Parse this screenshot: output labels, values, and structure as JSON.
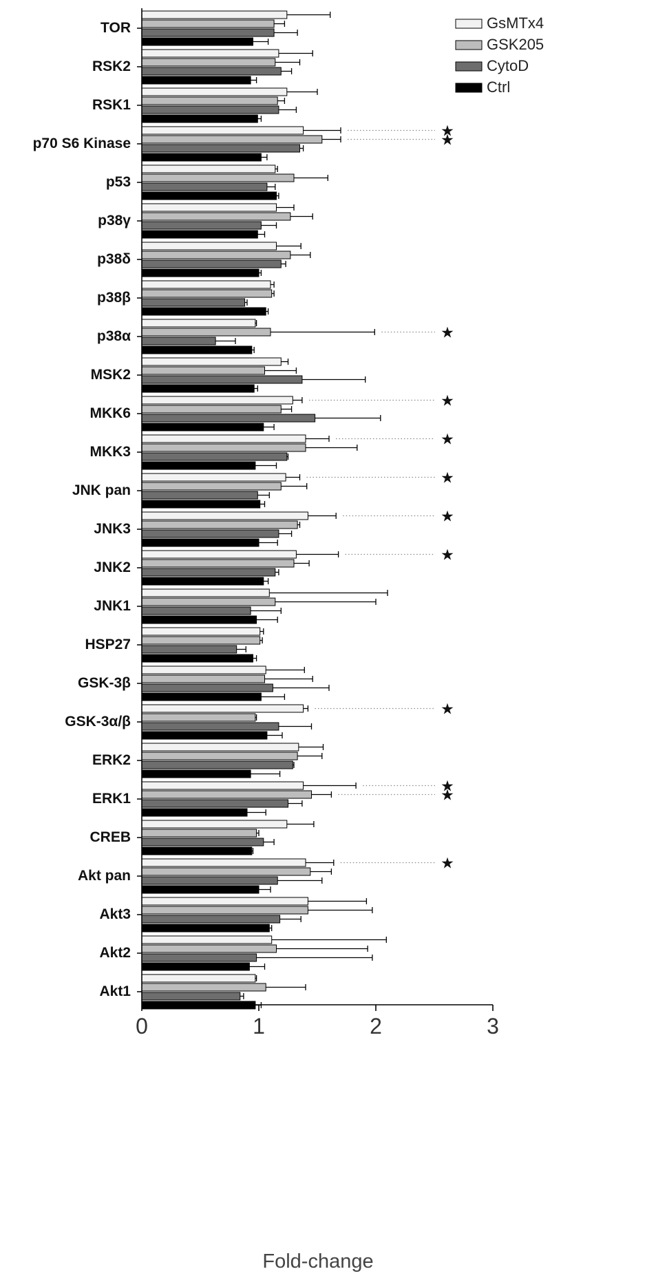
{
  "chart_data": {
    "type": "bar",
    "orientation": "horizontal",
    "xlabel": "Fold-change",
    "xlim": [
      0,
      3
    ],
    "xticks": [
      "0",
      "1",
      "2",
      "3"
    ],
    "legend_position": "top-right",
    "significance_marker": "★",
    "categories": [
      "TOR",
      "RSK2",
      "RSK1",
      "p70 S6 Kinase",
      "p53",
      "p38γ",
      "p38δ",
      "p38β",
      "p38α",
      "MSK2",
      "MKK6",
      "MKK3",
      "JNK pan",
      "JNK3",
      "JNK2",
      "JNK1",
      "HSP27",
      "GSK-3β",
      "GSK-3α/β",
      "ERK2",
      "ERK1",
      "CREB",
      "Akt pan",
      "Akt3",
      "Akt2",
      "Akt1"
    ],
    "series": [
      {
        "name": "GsMTx4",
        "color": "#f2f2f2",
        "values": [
          1.24,
          1.17,
          1.24,
          1.38,
          1.14,
          1.15,
          1.15,
          1.1,
          0.97,
          1.19,
          1.29,
          1.4,
          1.23,
          1.42,
          1.32,
          1.09,
          1.01,
          1.06,
          1.38,
          1.34,
          1.38,
          1.24,
          1.4,
          1.42,
          1.11,
          0.97
        ],
        "errors": [
          0.37,
          0.29,
          0.26,
          0.32,
          0.02,
          0.15,
          0.21,
          0.03,
          0.01,
          0.06,
          0.08,
          0.2,
          0.12,
          0.24,
          0.36,
          1.01,
          0.03,
          0.33,
          0.04,
          0.21,
          0.45,
          0.23,
          0.24,
          0.5,
          0.98,
          0.01
        ],
        "significant": [
          false,
          false,
          false,
          true,
          false,
          false,
          false,
          false,
          false,
          false,
          true,
          true,
          true,
          true,
          true,
          false,
          false,
          false,
          true,
          false,
          true,
          false,
          true,
          false,
          false,
          false
        ]
      },
      {
        "name": "GSK205",
        "color": "#bdbdbd",
        "values": [
          1.13,
          1.14,
          1.16,
          1.54,
          1.3,
          1.27,
          1.27,
          1.11,
          1.1,
          1.05,
          1.19,
          1.4,
          1.19,
          1.33,
          1.3,
          1.14,
          1.01,
          1.05,
          0.97,
          1.33,
          1.45,
          0.98,
          1.44,
          1.42,
          1.15,
          1.06
        ],
        "errors": [
          0.09,
          0.21,
          0.06,
          0.16,
          0.29,
          0.19,
          0.17,
          0.02,
          0.89,
          0.27,
          0.09,
          0.44,
          0.22,
          0.02,
          0.13,
          0.86,
          0.02,
          0.41,
          0.01,
          0.21,
          0.17,
          0.02,
          0.18,
          0.55,
          0.78,
          0.34
        ],
        "significant": [
          false,
          false,
          false,
          true,
          false,
          false,
          false,
          false,
          true,
          false,
          false,
          false,
          false,
          false,
          false,
          false,
          false,
          false,
          false,
          false,
          true,
          false,
          false,
          false,
          false,
          false
        ]
      },
      {
        "name": "CytoD",
        "color": "#6e6e6e",
        "values": [
          1.13,
          1.19,
          1.17,
          1.35,
          1.07,
          1.02,
          1.19,
          0.88,
          0.63,
          1.37,
          1.48,
          1.24,
          0.99,
          1.17,
          1.14,
          0.93,
          0.81,
          1.12,
          1.17,
          1.29,
          1.25,
          1.04,
          1.16,
          1.18,
          0.98,
          0.84
        ],
        "errors": [
          0.2,
          0.09,
          0.15,
          0.03,
          0.07,
          0.13,
          0.04,
          0.02,
          0.17,
          0.54,
          0.56,
          0.01,
          0.1,
          0.11,
          0.03,
          0.26,
          0.08,
          0.48,
          0.28,
          0.01,
          0.12,
          0.09,
          0.38,
          0.18,
          0.99,
          0.03
        ],
        "significant": [
          false,
          false,
          false,
          false,
          false,
          false,
          false,
          false,
          false,
          false,
          false,
          false,
          false,
          false,
          false,
          false,
          false,
          false,
          false,
          false,
          false,
          false,
          false,
          false,
          false,
          false
        ]
      },
      {
        "name": "Ctrl",
        "color": "#000000",
        "values": [
          0.95,
          0.93,
          0.99,
          1.02,
          1.15,
          0.99,
          1.0,
          1.06,
          0.94,
          0.96,
          1.04,
          0.97,
          1.01,
          1.0,
          1.04,
          0.98,
          0.95,
          1.02,
          1.07,
          0.93,
          0.9,
          0.94,
          1.0,
          1.09,
          0.92,
          0.97
        ],
        "errors": [
          0.13,
          0.05,
          0.03,
          0.05,
          0.02,
          0.06,
          0.02,
          0.02,
          0.02,
          0.03,
          0.09,
          0.18,
          0.04,
          0.16,
          0.04,
          0.18,
          0.03,
          0.2,
          0.13,
          0.25,
          0.16,
          0.01,
          0.1,
          0.02,
          0.13,
          0.05
        ],
        "significant": [
          false,
          false,
          false,
          false,
          false,
          false,
          false,
          false,
          false,
          false,
          false,
          false,
          false,
          false,
          false,
          false,
          false,
          false,
          false,
          false,
          false,
          false,
          false,
          false,
          false,
          false
        ]
      }
    ]
  }
}
